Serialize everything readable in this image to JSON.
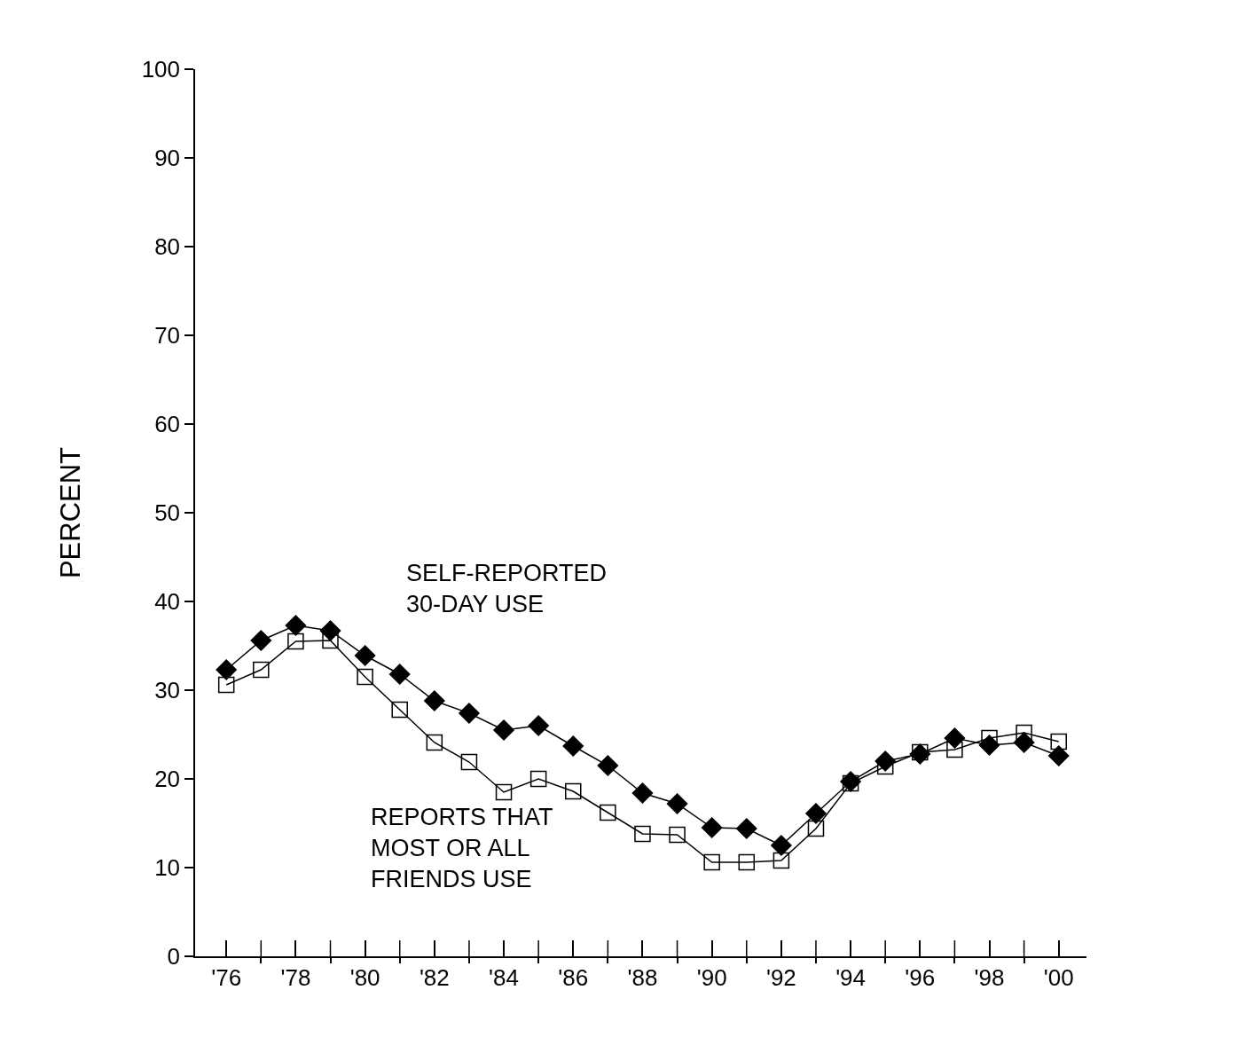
{
  "chart_data": {
    "type": "line",
    "ylabel": "PERCENT",
    "x": [
      1976,
      1977,
      1978,
      1979,
      1980,
      1981,
      1982,
      1983,
      1984,
      1985,
      1986,
      1987,
      1988,
      1989,
      1990,
      1991,
      1992,
      1993,
      1994,
      1995,
      1996,
      1997,
      1998,
      1999,
      2000
    ],
    "series": [
      {
        "name": "SELF-REPORTED\n30-DAY USE",
        "color": "#000000",
        "marker": "diamond",
        "values": [
          32.3,
          35.6,
          37.3,
          36.7,
          33.9,
          31.8,
          28.8,
          27.4,
          25.5,
          26.0,
          23.7,
          21.5,
          18.4,
          17.2,
          14.5,
          14.4,
          12.5,
          16.1,
          19.7,
          22.0,
          22.8,
          24.6,
          23.8,
          24.1,
          22.6
        ]
      },
      {
        "name": "REPORTS THAT\nMOST OR ALL\nFRIENDS USE",
        "color": "#000000",
        "marker": "square",
        "values": [
          30.6,
          32.3,
          35.5,
          35.6,
          31.5,
          27.8,
          24.1,
          21.9,
          18.5,
          20.0,
          18.6,
          16.2,
          13.8,
          13.7,
          10.6,
          10.6,
          10.8,
          14.4,
          19.5,
          21.4,
          23.0,
          23.3,
          24.6,
          25.2,
          24.2
        ]
      }
    ],
    "xlim": [
      1975.1,
      2000.8
    ],
    "xticks": [
      {
        "value": 1976,
        "label": "'76"
      },
      {
        "value": 1977,
        "label": null
      },
      {
        "value": 1978,
        "label": "'78"
      },
      {
        "value": 1979,
        "label": null
      },
      {
        "value": 1980,
        "label": "'80"
      },
      {
        "value": 1981,
        "label": null
      },
      {
        "value": 1982,
        "label": "'82"
      },
      {
        "value": 1983,
        "label": null
      },
      {
        "value": 1984,
        "label": "'84"
      },
      {
        "value": 1985,
        "label": null
      },
      {
        "value": 1986,
        "label": "'86"
      },
      {
        "value": 1987,
        "label": null
      },
      {
        "value": 1988,
        "label": "'88"
      },
      {
        "value": 1989,
        "label": null
      },
      {
        "value": 1990,
        "label": "'90"
      },
      {
        "value": 1991,
        "label": null
      },
      {
        "value": 1992,
        "label": "'92"
      },
      {
        "value": 1993,
        "label": null
      },
      {
        "value": 1994,
        "label": "'94"
      },
      {
        "value": 1995,
        "label": null
      },
      {
        "value": 1996,
        "label": "'96"
      },
      {
        "value": 1997,
        "label": null
      },
      {
        "value": 1998,
        "label": "'98"
      },
      {
        "value": 1999,
        "label": null
      },
      {
        "value": 2000,
        "label": "'00"
      }
    ],
    "ylim": [
      0,
      100
    ],
    "yticks": [
      0,
      10,
      20,
      30,
      40,
      50,
      60,
      70,
      80,
      90,
      100
    ],
    "grid": false,
    "legend": false,
    "line_style": "solid"
  }
}
